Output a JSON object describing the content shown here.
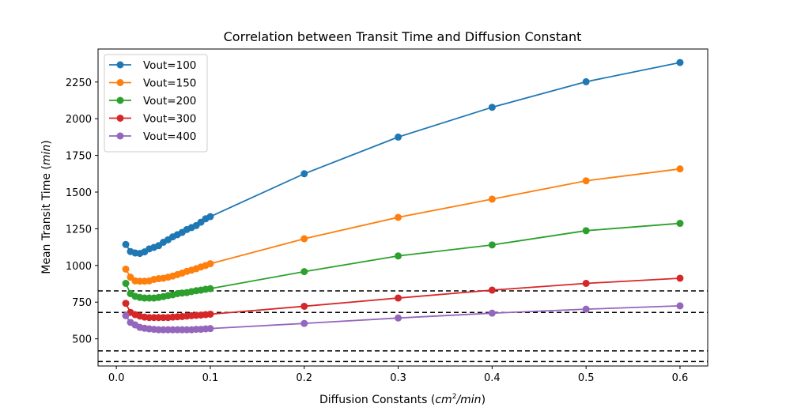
{
  "chart_data": {
    "type": "line",
    "title": "Correlation between Transit Time and Diffusion Constant",
    "xlabel": "Diffusion Constants (cm²/min)",
    "ylabel": "Mean Transit Time (min)",
    "xlim": [
      -0.0195,
      0.6295
    ],
    "ylim": [
      315,
      2475
    ],
    "xticks": [
      0.0,
      0.1,
      0.2,
      0.3,
      0.4,
      0.5,
      0.6
    ],
    "xtick_labels": [
      "0.0",
      "0.1",
      "0.2",
      "0.3",
      "0.4",
      "0.5",
      "0.6"
    ],
    "yticks": [
      500,
      750,
      1000,
      1250,
      1500,
      1750,
      2000,
      2250
    ],
    "ytick_labels": [
      "500",
      "750",
      "1000",
      "1250",
      "1500",
      "1750",
      "2000",
      "2250"
    ],
    "legend_position": "top-left",
    "x": [
      0.01,
      0.015,
      0.02,
      0.025,
      0.03,
      0.035,
      0.04,
      0.045,
      0.05,
      0.055,
      0.06,
      0.065,
      0.07,
      0.075,
      0.08,
      0.085,
      0.09,
      0.095,
      0.1,
      0.2,
      0.3,
      0.4,
      0.5,
      0.6
    ],
    "series": [
      {
        "name": "Vout=100",
        "color": "#1f77b4",
        "values": [
          1143,
          1095,
          1085,
          1082,
          1093,
          1113,
          1123,
          1135,
          1158,
          1175,
          1195,
          1210,
          1225,
          1245,
          1258,
          1272,
          1295,
          1318,
          1333,
          1625,
          1875,
          2078,
          2252,
          2383
        ]
      },
      {
        "name": "Vout=150",
        "color": "#ff7f0e",
        "values": [
          975,
          920,
          895,
          893,
          893,
          895,
          905,
          910,
          913,
          920,
          928,
          938,
          948,
          960,
          968,
          978,
          990,
          1000,
          1012,
          1182,
          1328,
          1452,
          1577,
          1658
        ]
      },
      {
        "name": "Vout=200",
        "color": "#2ca02c",
        "values": [
          878,
          808,
          790,
          782,
          778,
          778,
          778,
          782,
          788,
          795,
          800,
          808,
          812,
          815,
          822,
          828,
          832,
          838,
          842,
          958,
          1065,
          1140,
          1237,
          1287
        ]
      },
      {
        "name": "Vout=300",
        "color": "#d62728",
        "values": [
          742,
          680,
          665,
          655,
          648,
          645,
          645,
          645,
          645,
          645,
          648,
          650,
          652,
          655,
          658,
          660,
          662,
          665,
          668,
          722,
          778,
          832,
          878,
          913
        ]
      },
      {
        "name": "Vout=400",
        "color": "#9467bd",
        "values": [
          658,
          612,
          595,
          578,
          572,
          568,
          565,
          562,
          562,
          562,
          562,
          562,
          562,
          562,
          562,
          565,
          565,
          568,
          570,
          605,
          642,
          675,
          702,
          725
        ]
      }
    ],
    "reference_lines": [
      {
        "y": 827,
        "style": "dashed",
        "color": "#000000"
      },
      {
        "y": 680,
        "style": "dashed",
        "color": "#000000"
      },
      {
        "y": 418,
        "style": "dashed",
        "color": "#000000"
      },
      {
        "y": 345,
        "style": "dashed",
        "color": "#000000"
      }
    ]
  }
}
